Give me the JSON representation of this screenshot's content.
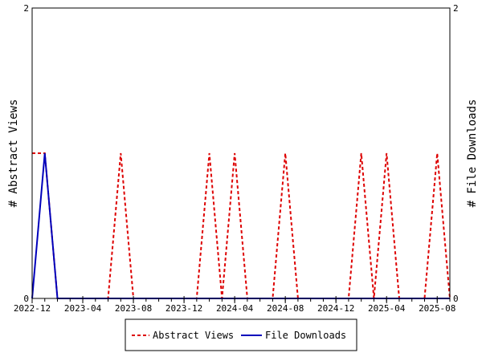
{
  "chart_data": {
    "type": "line",
    "title": "",
    "x": [
      "2022-12",
      "2023-01",
      "2023-02",
      "2023-03",
      "2023-04",
      "2023-05",
      "2023-06",
      "2023-07",
      "2023-08",
      "2023-09",
      "2023-10",
      "2023-11",
      "2023-12",
      "2024-01",
      "2024-02",
      "2024-03",
      "2024-04",
      "2024-05",
      "2024-06",
      "2024-07",
      "2024-08",
      "2024-09",
      "2024-10",
      "2024-11",
      "2024-12",
      "2025-01",
      "2025-02",
      "2025-03",
      "2025-04",
      "2025-05",
      "2025-06",
      "2025-07",
      "2025-08",
      "2025-09"
    ],
    "x_tick_labels": [
      "2022-12",
      "2023-04",
      "2023-08",
      "2023-12",
      "2024-04",
      "2024-08",
      "2024-12",
      "2025-04",
      "2025-08"
    ],
    "ylabel_left": "# Abstract Views",
    "ylabel_right": "# File Downloads",
    "ylim_left": [
      0,
      2
    ],
    "ylim_right": [
      0,
      2
    ],
    "y_tick_labels_left": [
      "0",
      "2"
    ],
    "y_tick_labels_right": [
      "0",
      "2"
    ],
    "series": [
      {
        "name": "Abstract Views",
        "axis": "left",
        "color": "#dd0000",
        "style": "dashed",
        "values": [
          1,
          1,
          0,
          0,
          0,
          0,
          0,
          1,
          0,
          0,
          0,
          0,
          0,
          0,
          1,
          0,
          1,
          0,
          0,
          0,
          1,
          0,
          0,
          0,
          0,
          0,
          1,
          0,
          1,
          0,
          0,
          0,
          1,
          0
        ]
      },
      {
        "name": "File Downloads",
        "axis": "right",
        "color": "#0000bb",
        "style": "solid",
        "values": [
          0,
          1,
          0,
          0,
          0,
          0,
          0,
          0,
          0,
          0,
          0,
          0,
          0,
          0,
          0,
          0,
          0,
          0,
          0,
          0,
          0,
          0,
          0,
          0,
          0,
          0,
          0,
          0,
          0,
          0,
          0,
          0,
          0,
          0
        ]
      }
    ],
    "legend": {
      "placement": "bottom-center",
      "entries": [
        "Abstract Views",
        "File Downloads"
      ]
    },
    "grid": false
  }
}
